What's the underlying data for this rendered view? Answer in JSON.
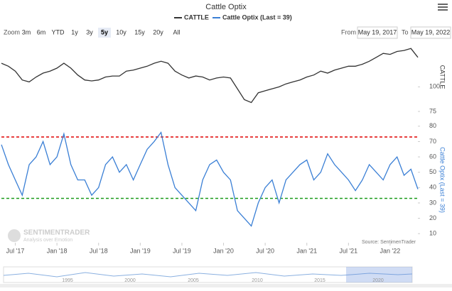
{
  "title": "Cattle Optix",
  "zoom": {
    "label": "Zoom",
    "buttons": [
      "3m",
      "6m",
      "YTD",
      "1y",
      "3y",
      "5y",
      "10y",
      "15y",
      "20y",
      "All"
    ],
    "selected": 5
  },
  "range": {
    "from_label": "From",
    "from": "May 19, 2017",
    "to_label": "To",
    "to": "May 19, 2022"
  },
  "watermark": {
    "name": "SENTIMENTRADER",
    "tagline": "Analysis over Emotion"
  },
  "source": "Source: SentimenTrader",
  "navigator": {
    "labels": [
      "1995",
      "2000",
      "2005",
      "2010",
      "2015",
      "2020"
    ]
  },
  "chart_data": [
    {
      "type": "line",
      "ytitle": "CATTLE",
      "xlim": [
        "2017-05",
        "2022-05"
      ],
      "ylim": [
        75,
        145
      ],
      "yticks": [
        75,
        100
      ],
      "x": [
        "2017-05",
        "2017-06",
        "2017-07",
        "2017-08",
        "2017-09",
        "2017-10",
        "2017-11",
        "2017-12",
        "2018-01",
        "2018-02",
        "2018-03",
        "2018-04",
        "2018-05",
        "2018-06",
        "2018-07",
        "2018-08",
        "2018-09",
        "2018-10",
        "2018-11",
        "2018-12",
        "2019-01",
        "2019-02",
        "2019-03",
        "2019-04",
        "2019-05",
        "2019-06",
        "2019-07",
        "2019-08",
        "2019-09",
        "2019-10",
        "2019-11",
        "2019-12",
        "2020-01",
        "2020-02",
        "2020-03",
        "2020-04",
        "2020-05",
        "2020-06",
        "2020-07",
        "2020-08",
        "2020-09",
        "2020-10",
        "2020-11",
        "2020-12",
        "2021-01",
        "2021-02",
        "2021-03",
        "2021-04",
        "2021-05",
        "2021-06",
        "2021-07",
        "2021-08",
        "2021-09",
        "2021-10",
        "2021-11",
        "2021-12",
        "2022-01",
        "2022-02",
        "2022-03",
        "2022-04",
        "2022-05"
      ],
      "series": [
        {
          "name": "CATTLE",
          "color": "#333333",
          "values": [
            124,
            121,
            116,
            107,
            105,
            110,
            114,
            116,
            119,
            124,
            119,
            112,
            107,
            106,
            107,
            110,
            111,
            111,
            116,
            117,
            119,
            121,
            124,
            126,
            124,
            116,
            112,
            109,
            111,
            110,
            107,
            109,
            110,
            109,
            98,
            87,
            84,
            94,
            96,
            98,
            100,
            103,
            105,
            107,
            110,
            112,
            116,
            114,
            117,
            119,
            121,
            121,
            123,
            126,
            130,
            134,
            133,
            136,
            137,
            139,
            130
          ]
        }
      ]
    },
    {
      "type": "line",
      "ytitle": "Cattle Optix (Last = 39)",
      "xlim": [
        "2017-05",
        "2022-05"
      ],
      "ylim": [
        5,
        85
      ],
      "yticks": [
        10,
        20,
        30,
        40,
        50,
        60,
        70,
        80
      ],
      "xticks": [
        {
          "value": "2017-07",
          "label": "Jul '17"
        },
        {
          "value": "2018-01",
          "label": "Jan '18"
        },
        {
          "value": "2018-07",
          "label": "Jul '18"
        },
        {
          "value": "2019-01",
          "label": "Jan '19"
        },
        {
          "value": "2019-07",
          "label": "Jul '19"
        },
        {
          "value": "2020-01",
          "label": "Jan '20"
        },
        {
          "value": "2020-07",
          "label": "Jul '20"
        },
        {
          "value": "2021-01",
          "label": "Jan '21"
        },
        {
          "value": "2021-07",
          "label": "Jul '21"
        },
        {
          "value": "2022-01",
          "label": "Jan '22"
        }
      ],
      "plot_lines": [
        {
          "value": 73,
          "color": "#e00000"
        },
        {
          "value": 33,
          "color": "#1a9a1a"
        }
      ],
      "x": [
        "2017-05",
        "2017-06",
        "2017-07",
        "2017-08",
        "2017-09",
        "2017-10",
        "2017-11",
        "2017-12",
        "2018-01",
        "2018-02",
        "2018-03",
        "2018-04",
        "2018-05",
        "2018-06",
        "2018-07",
        "2018-08",
        "2018-09",
        "2018-10",
        "2018-11",
        "2018-12",
        "2019-01",
        "2019-02",
        "2019-03",
        "2019-04",
        "2019-05",
        "2019-06",
        "2019-07",
        "2019-08",
        "2019-09",
        "2019-10",
        "2019-11",
        "2019-12",
        "2020-01",
        "2020-02",
        "2020-03",
        "2020-04",
        "2020-05",
        "2020-06",
        "2020-07",
        "2020-08",
        "2020-09",
        "2020-10",
        "2020-11",
        "2020-12",
        "2021-01",
        "2021-02",
        "2021-03",
        "2021-04",
        "2021-05",
        "2021-06",
        "2021-07",
        "2021-08",
        "2021-09",
        "2021-10",
        "2021-11",
        "2021-12",
        "2022-01",
        "2022-02",
        "2022-03",
        "2022-04",
        "2022-05"
      ],
      "series": [
        {
          "name": "Cattle Optix (Last = 39)",
          "color": "#3a7fd5",
          "values": [
            68,
            55,
            45,
            35,
            55,
            60,
            70,
            55,
            60,
            75,
            55,
            45,
            45,
            35,
            40,
            55,
            60,
            50,
            55,
            45,
            55,
            65,
            70,
            76,
            55,
            40,
            35,
            30,
            25,
            45,
            55,
            58,
            50,
            45,
            25,
            20,
            15,
            30,
            40,
            45,
            30,
            45,
            50,
            55,
            58,
            45,
            50,
            62,
            55,
            50,
            45,
            38,
            45,
            55,
            50,
            45,
            55,
            60,
            48,
            52,
            39
          ]
        }
      ]
    }
  ]
}
